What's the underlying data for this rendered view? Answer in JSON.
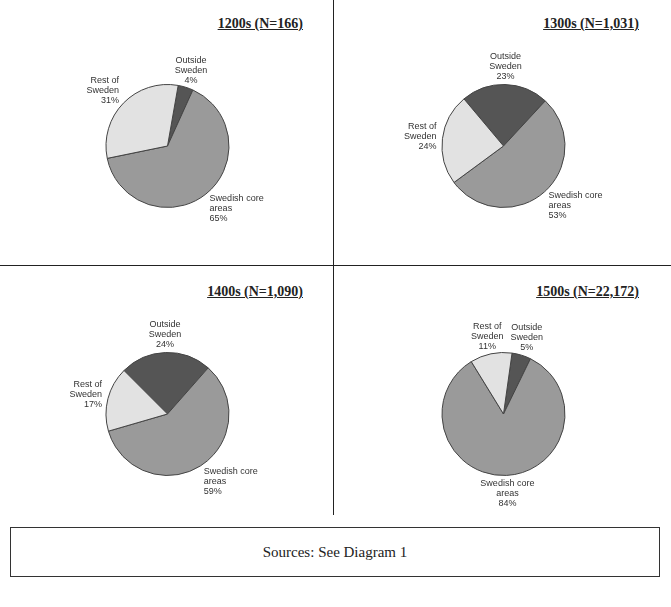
{
  "chart_data": [
    {
      "type": "pie",
      "title": "1200s (N=166)",
      "categories": [
        "Outside Sweden",
        "Swedish core areas",
        "Rest of Sweden"
      ],
      "values": [
        4,
        65,
        31
      ],
      "value_labels": [
        "4%",
        "65%",
        "31%"
      ],
      "colors": [
        "#555555",
        "#9a9a9a",
        "#e2e2e2"
      ],
      "data_labels": true
    },
    {
      "type": "pie",
      "title": "1300s (N=1,031)",
      "categories": [
        "Outside Sweden",
        "Swedish core areas",
        "Rest of Sweden"
      ],
      "values": [
        23,
        53,
        24
      ],
      "value_labels": [
        "23%",
        "53%",
        "24%"
      ],
      "colors": [
        "#555555",
        "#9a9a9a",
        "#e2e2e2"
      ],
      "data_labels": true
    },
    {
      "type": "pie",
      "title": "1400s (N=1,090)",
      "categories": [
        "Outside Sweden",
        "Swedish core areas",
        "Rest of Sweden"
      ],
      "values": [
        24,
        59,
        17
      ],
      "value_labels": [
        "24%",
        "59%",
        "17%"
      ],
      "colors": [
        "#555555",
        "#9a9a9a",
        "#e2e2e2"
      ],
      "data_labels": true
    },
    {
      "type": "pie",
      "title": "1500s (N=22,172)",
      "categories": [
        "Outside Sweden",
        "Swedish core areas",
        "Rest of Sweden"
      ],
      "values": [
        5,
        84,
        11
      ],
      "value_labels": [
        "5%",
        "84%",
        "11%"
      ],
      "colors": [
        "#555555",
        "#9a9a9a",
        "#e2e2e2"
      ],
      "data_labels": true
    }
  ],
  "footer": "Sources: See Diagram 1"
}
